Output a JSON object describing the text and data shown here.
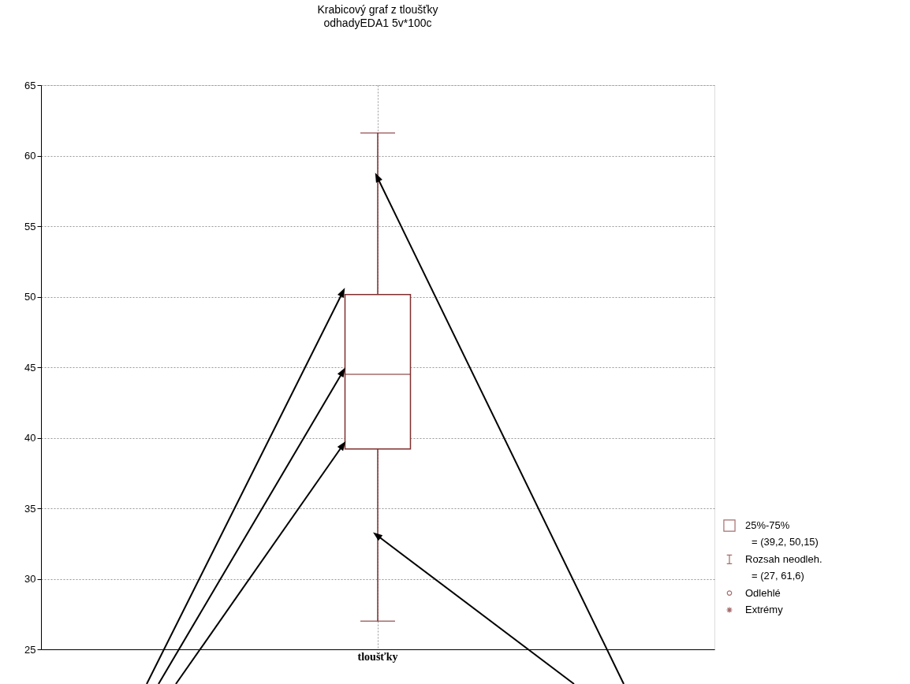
{
  "chart_data": {
    "type": "box",
    "title": "Krabicový graf z tloušťky",
    "subtitle": "odhadyEDA1 5v*100c",
    "categories": [
      "tloušťky"
    ],
    "series": [
      {
        "color": "#7f2f2f",
        "boxes": [
          {
            "low": 27,
            "q1": 39.2,
            "median": 44.5,
            "q3": 50.15,
            "high": 61.6
          }
        ]
      }
    ],
    "ylim": [
      25,
      65
    ],
    "yticks": [
      25,
      30,
      35,
      40,
      45,
      50,
      55,
      60,
      65
    ],
    "grid": true,
    "annotations": [
      "25%-75%",
      "= (39,2, 50,15)",
      "Rozsah neodleh.",
      "= (27, 61,6)",
      "Odlehlé",
      "Extrémy"
    ]
  }
}
